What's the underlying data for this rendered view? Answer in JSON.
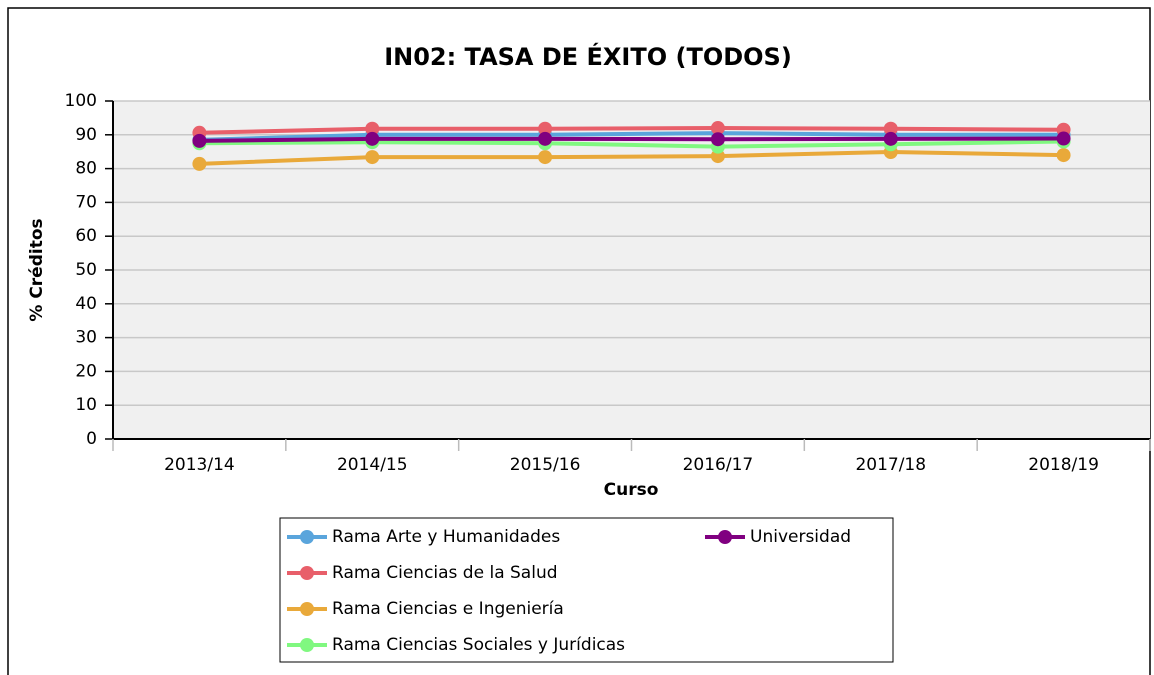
{
  "chart_data": {
    "type": "line",
    "title": "IN02: TASA DE ÉXITO (TODOS)",
    "x_label": "Curso",
    "y_label": "% Créditos",
    "categories": [
      "2013/14",
      "2014/15",
      "2015/16",
      "2016/17",
      "2017/18",
      "2018/19"
    ],
    "series": [
      {
        "name": "Rama Arte y Humanidades",
        "color": "#5aa5dc",
        "values": [
          88.5,
          90.0,
          90.0,
          90.5,
          90.0,
          90.0
        ]
      },
      {
        "name": "Rama Ciencias de la Salud",
        "color": "#e85f6a",
        "values": [
          90.6,
          91.8,
          91.8,
          92.0,
          91.8,
          91.5
        ]
      },
      {
        "name": "Rama Ciencias e Ingeniería",
        "color": "#e9a93a",
        "values": [
          81.4,
          83.4,
          83.4,
          83.7,
          84.9,
          84.0
        ]
      },
      {
        "name": "Rama Ciencias Sociales y Jurídicas",
        "color": "#80f880",
        "values": [
          87.5,
          87.8,
          87.5,
          86.5,
          87.2,
          88.0
        ]
      },
      {
        "name": "Universidad",
        "color": "#800080",
        "values": [
          88.2,
          88.8,
          88.8,
          88.7,
          88.8,
          88.9
        ]
      }
    ],
    "ylim": [
      0,
      100
    ],
    "yticks": [
      0,
      10,
      20,
      30,
      40,
      50,
      60,
      70,
      80,
      90,
      100
    ],
    "grid": true
  }
}
